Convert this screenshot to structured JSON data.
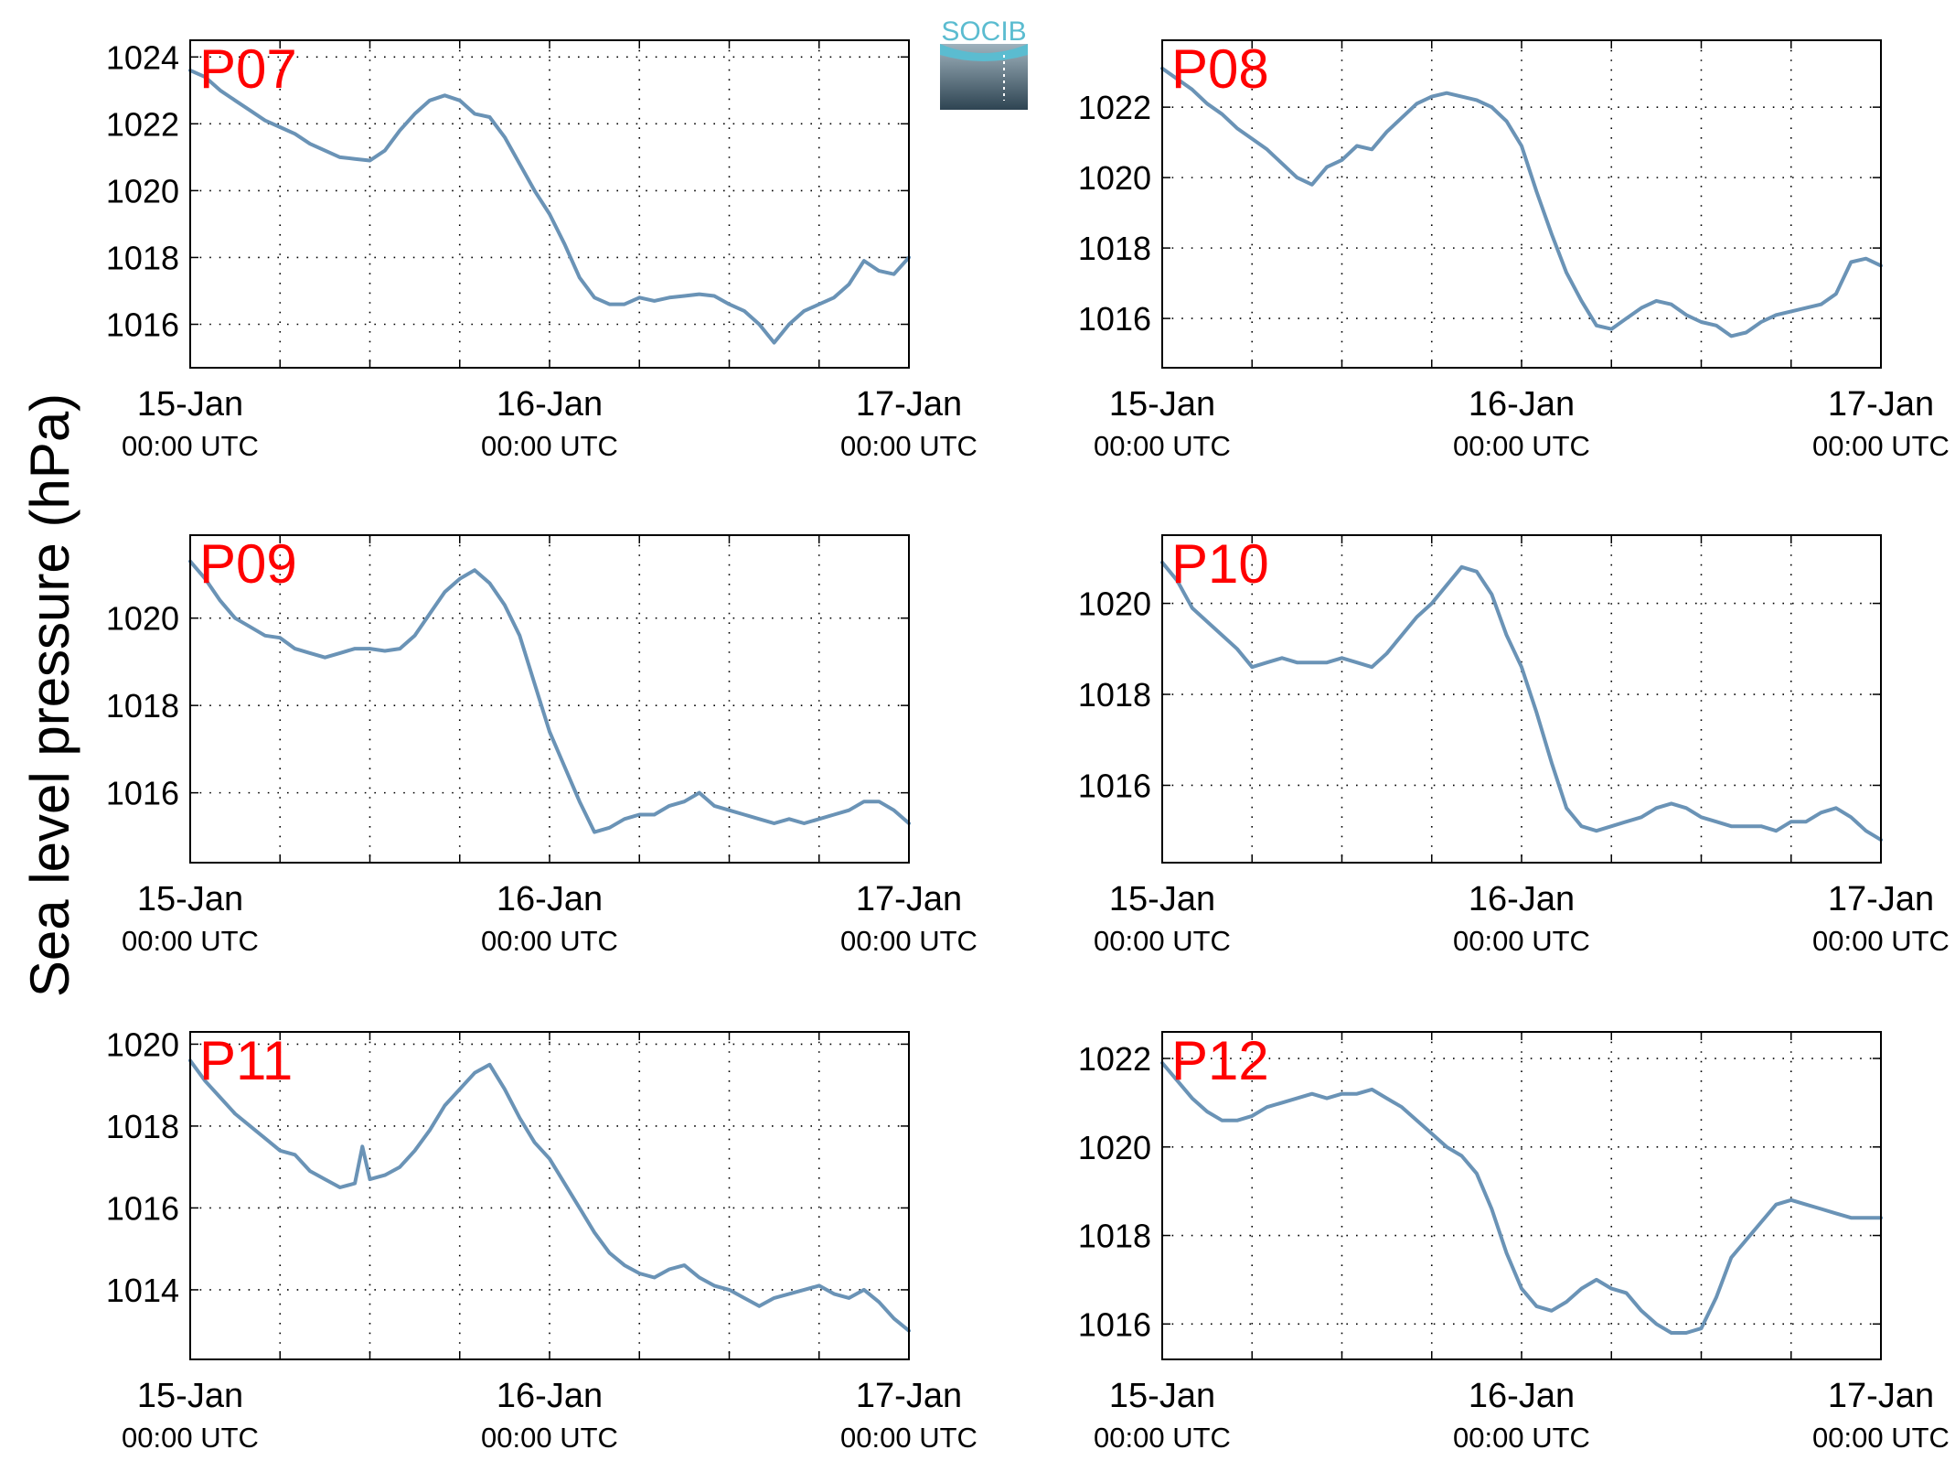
{
  "figure": {
    "ylabel": "Sea level pressure (hPa)",
    "logo": {
      "text": "SOCIB",
      "colors": {
        "top": "#5BBCD0",
        "bottom": "#2E4452"
      }
    }
  },
  "style": {
    "line_color": "#6A93B6",
    "label_color": "#FF0000",
    "grid": true,
    "grid_style": "dotted"
  },
  "chart_data": [
    {
      "type": "line",
      "label": "P07",
      "xlim": [
        0,
        48
      ],
      "ylim": [
        1014.7,
        1024.5
      ],
      "yticks": [
        1016,
        1018,
        1020,
        1022,
        1024
      ],
      "xticks": [
        {
          "x": 0,
          "date": "15-Jan",
          "time": "00:00 UTC"
        },
        {
          "x": 24,
          "date": "16-Jan",
          "time": "00:00 UTC"
        },
        {
          "x": 48,
          "date": "17-Jan",
          "time": "00:00 UTC"
        }
      ],
      "grid_x": [
        0,
        6,
        12,
        18,
        24,
        30,
        36,
        42,
        48
      ],
      "x": [
        0,
        1,
        2,
        3,
        4,
        5,
        6,
        7,
        8,
        9,
        10,
        11,
        12,
        13,
        14,
        15,
        16,
        17,
        18,
        19,
        20,
        21,
        22,
        23,
        24,
        25,
        26,
        27,
        28,
        29,
        30,
        31,
        32,
        33,
        34,
        35,
        36,
        37,
        38,
        39,
        40,
        41,
        42,
        43,
        44,
        45,
        46,
        47,
        48
      ],
      "y": [
        1023.6,
        1023.4,
        1023.0,
        1022.7,
        1022.4,
        1022.1,
        1021.9,
        1021.7,
        1021.4,
        1021.2,
        1021.0,
        1020.95,
        1020.9,
        1021.2,
        1021.8,
        1022.3,
        1022.7,
        1022.85,
        1022.7,
        1022.3,
        1022.2,
        1021.6,
        1020.8,
        1020.0,
        1019.3,
        1018.4,
        1017.4,
        1016.8,
        1016.6,
        1016.6,
        1016.8,
        1016.7,
        1016.8,
        1016.85,
        1016.9,
        1016.85,
        1016.6,
        1016.4,
        1016.0,
        1015.45,
        1016.0,
        1016.4,
        1016.6,
        1016.8,
        1017.2,
        1017.9,
        1017.6,
        1017.5,
        1018.0
      ]
    },
    {
      "type": "line",
      "label": "P08",
      "xlim": [
        0,
        48
      ],
      "ylim": [
        1014.6,
        1023.9
      ],
      "yticks": [
        1016,
        1018,
        1020,
        1022
      ],
      "xticks": [
        {
          "x": 0,
          "date": "15-Jan",
          "time": "00:00 UTC"
        },
        {
          "x": 24,
          "date": "16-Jan",
          "time": "00:00 UTC"
        },
        {
          "x": 48,
          "date": "17-Jan",
          "time": "00:00 UTC"
        }
      ],
      "grid_x": [
        0,
        6,
        12,
        18,
        24,
        30,
        36,
        42,
        48
      ],
      "x": [
        0,
        1,
        2,
        3,
        4,
        5,
        6,
        7,
        8,
        9,
        10,
        11,
        12,
        13,
        14,
        15,
        16,
        17,
        18,
        19,
        20,
        21,
        22,
        23,
        24,
        25,
        26,
        27,
        28,
        29,
        30,
        31,
        32,
        33,
        34,
        35,
        36,
        37,
        38,
        39,
        40,
        41,
        42,
        43,
        44,
        45,
        46,
        47,
        48
      ],
      "y": [
        1023.1,
        1022.8,
        1022.5,
        1022.1,
        1021.8,
        1021.4,
        1021.1,
        1020.8,
        1020.4,
        1020.0,
        1019.8,
        1020.3,
        1020.5,
        1020.9,
        1020.8,
        1021.3,
        1021.7,
        1022.1,
        1022.3,
        1022.4,
        1022.3,
        1022.2,
        1022.0,
        1021.6,
        1020.9,
        1019.6,
        1018.4,
        1017.3,
        1016.5,
        1015.8,
        1015.7,
        1016.0,
        1016.3,
        1016.5,
        1016.4,
        1016.1,
        1015.9,
        1015.8,
        1015.5,
        1015.6,
        1015.9,
        1016.1,
        1016.2,
        1016.3,
        1016.4,
        1016.7,
        1017.6,
        1017.7,
        1017.5
      ]
    },
    {
      "type": "line",
      "label": "P09",
      "xlim": [
        0,
        48
      ],
      "ylim": [
        1014.4,
        1021.9
      ],
      "yticks": [
        1016,
        1018,
        1020
      ],
      "xticks": [
        {
          "x": 0,
          "date": "15-Jan",
          "time": "00:00 UTC"
        },
        {
          "x": 24,
          "date": "16-Jan",
          "time": "00:00 UTC"
        },
        {
          "x": 48,
          "date": "17-Jan",
          "time": "00:00 UTC"
        }
      ],
      "grid_x": [
        0,
        6,
        12,
        18,
        24,
        30,
        36,
        42,
        48
      ],
      "x": [
        0,
        1,
        2,
        3,
        4,
        5,
        6,
        7,
        8,
        9,
        10,
        11,
        12,
        13,
        14,
        15,
        16,
        17,
        18,
        19,
        20,
        21,
        22,
        23,
        24,
        25,
        26,
        27,
        28,
        29,
        30,
        31,
        32,
        33,
        34,
        35,
        36,
        37,
        38,
        39,
        40,
        41,
        42,
        43,
        44,
        45,
        46,
        47,
        48
      ],
      "y": [
        1021.3,
        1020.9,
        1020.4,
        1020.0,
        1019.8,
        1019.6,
        1019.55,
        1019.3,
        1019.2,
        1019.1,
        1019.2,
        1019.3,
        1019.3,
        1019.25,
        1019.3,
        1019.6,
        1020.1,
        1020.6,
        1020.9,
        1021.1,
        1020.8,
        1020.3,
        1019.6,
        1018.5,
        1017.4,
        1016.6,
        1015.8,
        1015.1,
        1015.2,
        1015.4,
        1015.5,
        1015.5,
        1015.7,
        1015.8,
        1016.0,
        1015.7,
        1015.6,
        1015.5,
        1015.4,
        1015.3,
        1015.4,
        1015.3,
        1015.4,
        1015.5,
        1015.6,
        1015.8,
        1015.8,
        1015.6,
        1015.3
      ]
    },
    {
      "type": "line",
      "label": "P10",
      "xlim": [
        0,
        48
      ],
      "ylim": [
        1014.3,
        1021.5
      ],
      "yticks": [
        1016,
        1018,
        1020
      ],
      "xticks": [
        {
          "x": 0,
          "date": "15-Jan",
          "time": "00:00 UTC"
        },
        {
          "x": 24,
          "date": "16-Jan",
          "time": "00:00 UTC"
        },
        {
          "x": 48,
          "date": "17-Jan",
          "time": "00:00 UTC"
        }
      ],
      "grid_x": [
        0,
        6,
        12,
        18,
        24,
        30,
        36,
        42,
        48
      ],
      "x": [
        0,
        1,
        2,
        3,
        4,
        5,
        6,
        7,
        8,
        9,
        10,
        11,
        12,
        13,
        14,
        15,
        16,
        17,
        18,
        19,
        20,
        21,
        22,
        23,
        24,
        25,
        26,
        27,
        28,
        29,
        30,
        31,
        32,
        33,
        34,
        35,
        36,
        37,
        38,
        39,
        40,
        41,
        42,
        43,
        44,
        45,
        46,
        47,
        48
      ],
      "y": [
        1020.9,
        1020.5,
        1019.9,
        1019.6,
        1019.3,
        1019.0,
        1018.6,
        1018.7,
        1018.8,
        1018.7,
        1018.7,
        1018.7,
        1018.8,
        1018.7,
        1018.6,
        1018.9,
        1019.3,
        1019.7,
        1020.0,
        1020.4,
        1020.8,
        1020.7,
        1020.2,
        1019.3,
        1018.6,
        1017.6,
        1016.5,
        1015.5,
        1015.1,
        1015.0,
        1015.1,
        1015.2,
        1015.3,
        1015.5,
        1015.6,
        1015.5,
        1015.3,
        1015.2,
        1015.1,
        1015.1,
        1015.1,
        1015.0,
        1015.2,
        1015.2,
        1015.4,
        1015.5,
        1015.3,
        1015.0,
        1014.8
      ]
    },
    {
      "type": "line",
      "label": "P11",
      "xlim": [
        0,
        48
      ],
      "ylim": [
        1012.3,
        1020.3
      ],
      "yticks": [
        1014,
        1016,
        1018,
        1020
      ],
      "xticks": [
        {
          "x": 0,
          "date": "15-Jan",
          "time": "00:00 UTC"
        },
        {
          "x": 24,
          "date": "16-Jan",
          "time": "00:00 UTC"
        },
        {
          "x": 48,
          "date": "17-Jan",
          "time": "00:00 UTC"
        }
      ],
      "grid_x": [
        0,
        6,
        12,
        18,
        24,
        30,
        36,
        42,
        48
      ],
      "x": [
        0,
        1,
        2,
        3,
        4,
        5,
        6,
        7,
        8,
        9,
        10,
        11,
        11.5,
        12,
        13,
        14,
        15,
        16,
        17,
        18,
        19,
        20,
        21,
        22,
        23,
        24,
        25,
        26,
        27,
        28,
        29,
        30,
        31,
        32,
        33,
        34,
        35,
        36,
        37,
        38,
        39,
        40,
        41,
        42,
        43,
        44,
        45,
        46,
        47,
        48
      ],
      "y": [
        1019.6,
        1019.1,
        1018.7,
        1018.3,
        1018.0,
        1017.7,
        1017.4,
        1017.3,
        1016.9,
        1016.7,
        1016.5,
        1016.6,
        1017.5,
        1016.7,
        1016.8,
        1017.0,
        1017.4,
        1017.9,
        1018.5,
        1018.9,
        1019.3,
        1019.5,
        1018.9,
        1018.2,
        1017.6,
        1017.2,
        1016.6,
        1016.0,
        1015.4,
        1014.9,
        1014.6,
        1014.4,
        1014.3,
        1014.5,
        1014.6,
        1014.3,
        1014.1,
        1014.0,
        1013.8,
        1013.6,
        1013.8,
        1013.9,
        1014.0,
        1014.1,
        1013.9,
        1013.8,
        1014.0,
        1013.7,
        1013.3,
        1013.0
      ]
    },
    {
      "type": "line",
      "label": "P12",
      "xlim": [
        0,
        48
      ],
      "ylim": [
        1015.2,
        1022.6
      ],
      "yticks": [
        1016,
        1018,
        1020,
        1022
      ],
      "xticks": [
        {
          "x": 0,
          "date": "15-Jan",
          "time": "00:00 UTC"
        },
        {
          "x": 24,
          "date": "16-Jan",
          "time": "00:00 UTC"
        },
        {
          "x": 48,
          "date": "17-Jan",
          "time": "00:00 UTC"
        }
      ],
      "grid_x": [
        0,
        6,
        12,
        18,
        24,
        30,
        36,
        42,
        48
      ],
      "x": [
        0,
        1,
        2,
        3,
        4,
        5,
        6,
        7,
        8,
        9,
        10,
        11,
        12,
        13,
        14,
        15,
        16,
        17,
        18,
        19,
        20,
        21,
        22,
        23,
        24,
        25,
        26,
        27,
        28,
        29,
        30,
        31,
        32,
        33,
        34,
        35,
        36,
        37,
        38,
        39,
        40,
        41,
        42,
        43,
        44,
        45,
        46,
        47,
        48
      ],
      "y": [
        1021.9,
        1021.5,
        1021.1,
        1020.8,
        1020.6,
        1020.6,
        1020.7,
        1020.9,
        1021.0,
        1021.1,
        1021.2,
        1021.1,
        1021.2,
        1021.2,
        1021.3,
        1021.1,
        1020.9,
        1020.6,
        1020.3,
        1020.0,
        1019.8,
        1019.4,
        1018.6,
        1017.6,
        1016.8,
        1016.4,
        1016.3,
        1016.5,
        1016.8,
        1017.0,
        1016.8,
        1016.7,
        1016.3,
        1016.0,
        1015.8,
        1015.8,
        1015.9,
        1016.6,
        1017.5,
        1017.9,
        1018.3,
        1018.7,
        1018.8,
        1018.7,
        1018.6,
        1018.5,
        1018.4,
        1018.4,
        1018.4
      ]
    }
  ]
}
